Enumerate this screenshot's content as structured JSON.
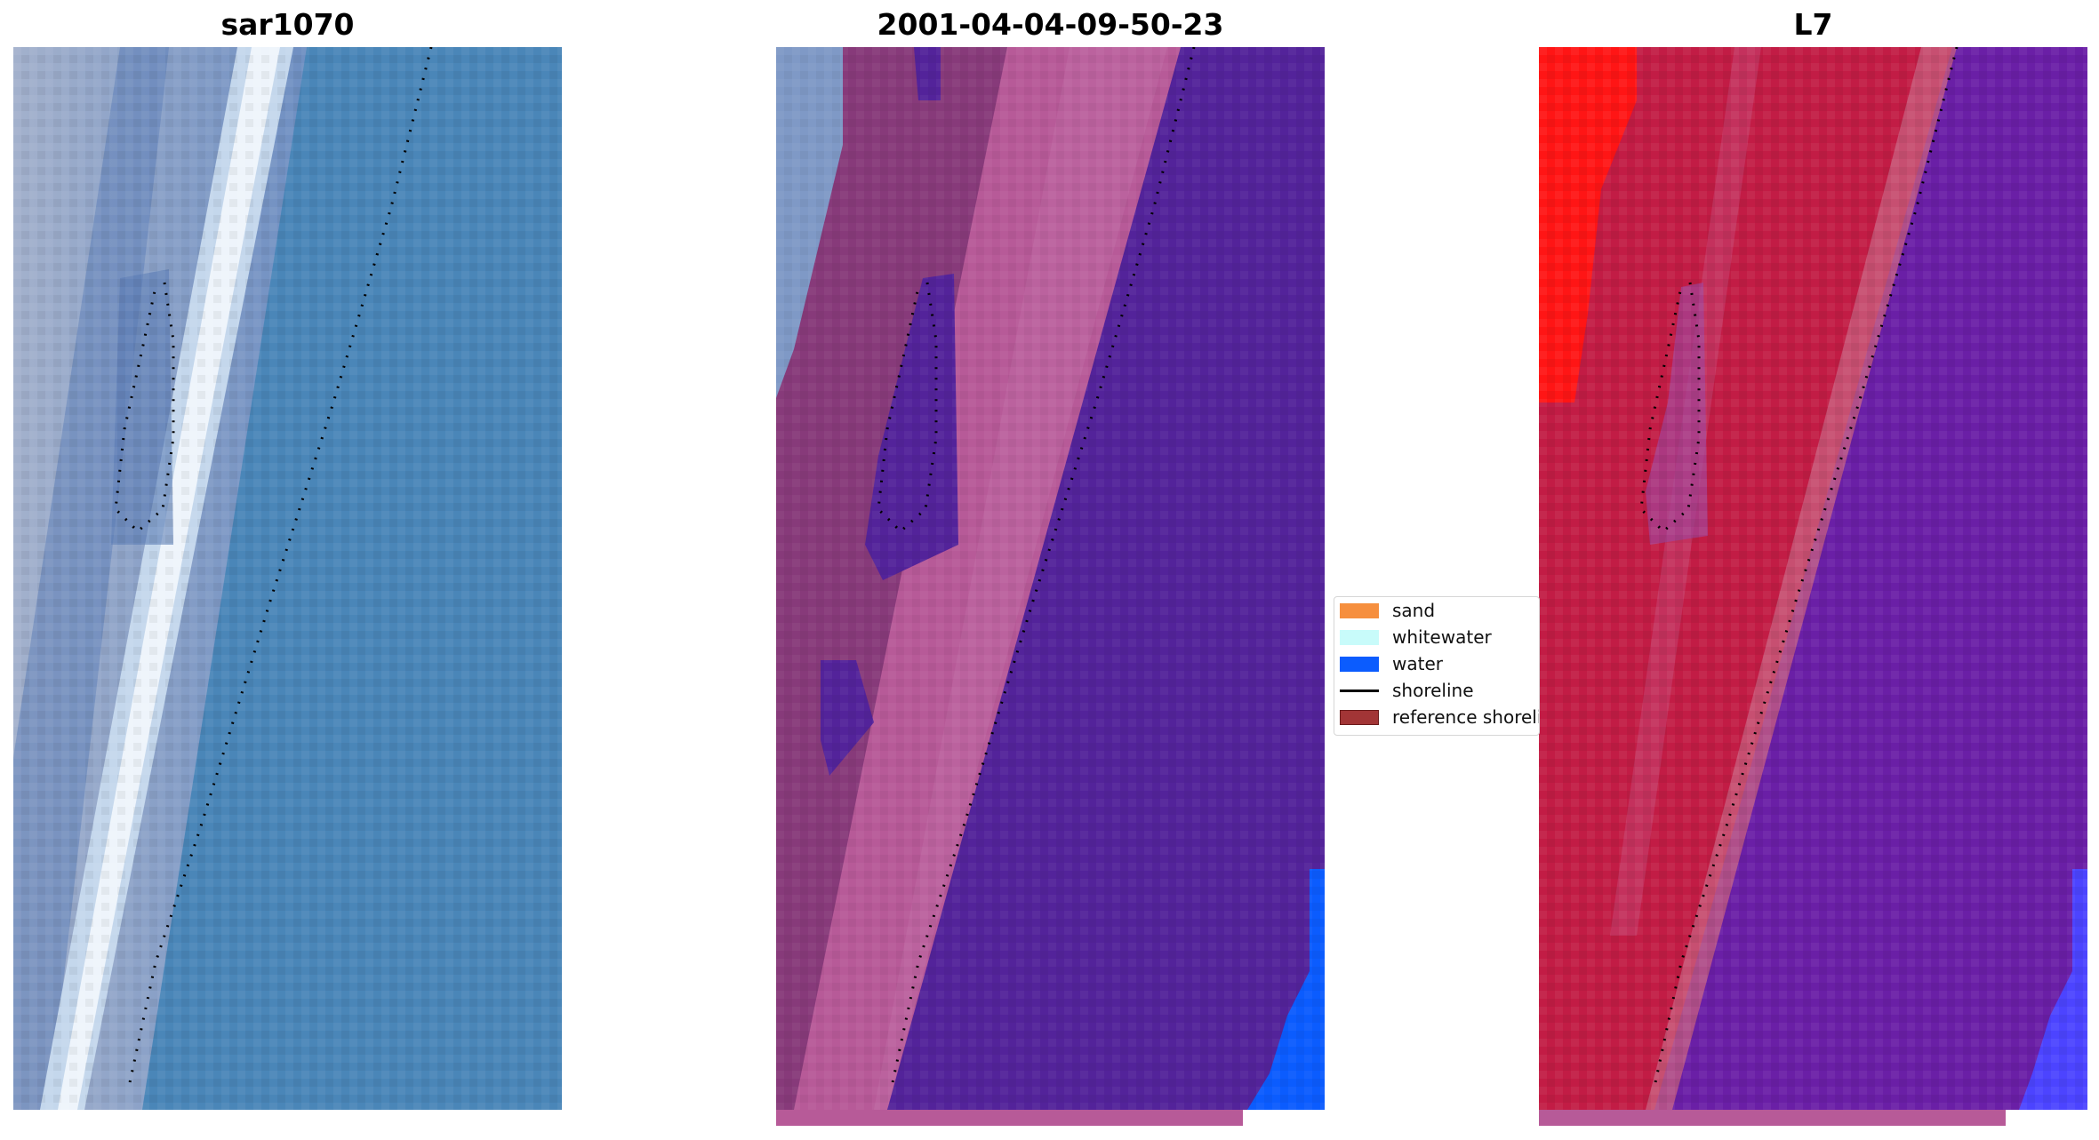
{
  "panels": [
    {
      "title": "sar1070"
    },
    {
      "title": "2001-04-04-09-50-23"
    },
    {
      "title": "L7"
    }
  ],
  "legend": {
    "placement": "center",
    "items": [
      {
        "label": "sand",
        "color": "#f68f3e",
        "kind": "patch"
      },
      {
        "label": "whitewater",
        "color": "#c8fbfa",
        "kind": "patch"
      },
      {
        "label": "water",
        "color": "#0b5cfe",
        "kind": "patch"
      },
      {
        "label": "shoreline",
        "color": "#000000",
        "kind": "line"
      },
      {
        "label": "reference shoreline",
        "color": "#a23536",
        "kind": "patch"
      }
    ]
  },
  "chart_data": {
    "type": "heatmap",
    "grid": false,
    "colors": {
      "sar_water": "#4a86b8",
      "sar_land": "#7f99c6",
      "sar_surf": "#e9f2fb",
      "class_water_area": "#53239a",
      "class_land": "#873a7a",
      "class_beach": "#b75a98",
      "class_water_pixels": "#0b5cfe",
      "l7_land": "#c21c45",
      "l7_bright": "#ff1515",
      "l7_water": "#6a1fa6",
      "l7_blue": "#4c44ff"
    }
  }
}
